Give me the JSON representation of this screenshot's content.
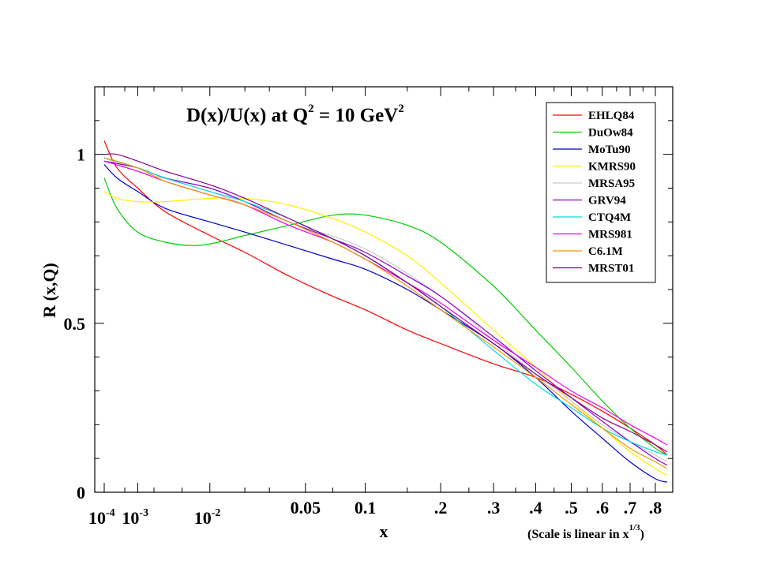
{
  "chart_data": {
    "type": "line",
    "title": "D(x)/U(x) at Q",
    "title_sup1": "2",
    "title_mid": " = 10 GeV",
    "title_sup2": "2",
    "xlabel": "x",
    "ylabel": "R (x,Q)",
    "scale_note": "(Scale is linear in x",
    "scale_note_sup": "1/3",
    "scale_note_end": ")",
    "x_scale": "linear in x^(1/3)",
    "xlim": [
      0.0001,
      0.85
    ],
    "ylim": [
      0,
      1.2
    ],
    "grid": false,
    "legend_position": "top-right",
    "y_ticks": [
      {
        "value": 0,
        "label": "0"
      },
      {
        "value": 0.5,
        "label": "0.5"
      },
      {
        "value": 1,
        "label": "1"
      }
    ],
    "x_ticks": [
      {
        "value": 0.0001,
        "base": "10",
        "exp": "-4"
      },
      {
        "value": 0.001,
        "base": "10",
        "exp": "-3"
      },
      {
        "value": 0.01,
        "base": "10",
        "exp": "-2"
      },
      {
        "value": 0.05,
        "base": "0.05",
        "exp": ""
      },
      {
        "value": 0.1,
        "base": "0.1",
        "exp": ""
      },
      {
        "value": 0.2,
        "base": ".2",
        "exp": ""
      },
      {
        "value": 0.3,
        "base": ".3",
        "exp": ""
      },
      {
        "value": 0.4,
        "base": ".4",
        "exp": ""
      },
      {
        "value": 0.5,
        "base": ".5",
        "exp": ""
      },
      {
        "value": 0.6,
        "base": ".6",
        "exp": ""
      },
      {
        "value": 0.7,
        "base": ".7",
        "exp": ""
      },
      {
        "value": 0.8,
        "base": ".8",
        "exp": ""
      }
    ],
    "series": [
      {
        "name": "EHLQ84",
        "color": "#ff0000",
        "points": [
          [
            0.0001,
            1.04
          ],
          [
            0.0003,
            0.96
          ],
          [
            0.001,
            0.9
          ],
          [
            0.003,
            0.83
          ],
          [
            0.01,
            0.76
          ],
          [
            0.02,
            0.71
          ],
          [
            0.04,
            0.64
          ],
          [
            0.07,
            0.58
          ],
          [
            0.1,
            0.54
          ],
          [
            0.15,
            0.48
          ],
          [
            0.2,
            0.44
          ],
          [
            0.3,
            0.38
          ],
          [
            0.4,
            0.34
          ],
          [
            0.5,
            0.29
          ],
          [
            0.6,
            0.24
          ],
          [
            0.7,
            0.19
          ],
          [
            0.8,
            0.14
          ],
          [
            0.85,
            0.11
          ]
        ]
      },
      {
        "name": "DuOw84",
        "color": "#00cc00",
        "points": [
          [
            0.0001,
            0.93
          ],
          [
            0.0003,
            0.84
          ],
          [
            0.001,
            0.77
          ],
          [
            0.003,
            0.74
          ],
          [
            0.007,
            0.73
          ],
          [
            0.012,
            0.74
          ],
          [
            0.02,
            0.76
          ],
          [
            0.04,
            0.79
          ],
          [
            0.07,
            0.82
          ],
          [
            0.1,
            0.82
          ],
          [
            0.15,
            0.79
          ],
          [
            0.2,
            0.74
          ],
          [
            0.3,
            0.61
          ],
          [
            0.4,
            0.48
          ],
          [
            0.5,
            0.37
          ],
          [
            0.6,
            0.27
          ],
          [
            0.7,
            0.19
          ],
          [
            0.8,
            0.13
          ],
          [
            0.85,
            0.11
          ]
        ]
      },
      {
        "name": "MoTu90",
        "color": "#0000cc",
        "points": [
          [
            0.0001,
            0.97
          ],
          [
            0.0003,
            0.93
          ],
          [
            0.001,
            0.89
          ],
          [
            0.003,
            0.84
          ],
          [
            0.01,
            0.8
          ],
          [
            0.02,
            0.77
          ],
          [
            0.04,
            0.73
          ],
          [
            0.07,
            0.69
          ],
          [
            0.1,
            0.66
          ],
          [
            0.15,
            0.6
          ],
          [
            0.2,
            0.54
          ],
          [
            0.3,
            0.44
          ],
          [
            0.4,
            0.34
          ],
          [
            0.5,
            0.24
          ],
          [
            0.6,
            0.16
          ],
          [
            0.7,
            0.09
          ],
          [
            0.8,
            0.04
          ],
          [
            0.85,
            0.03
          ]
        ]
      },
      {
        "name": "KMRS90",
        "color": "#ffee00",
        "points": [
          [
            0.0001,
            0.89
          ],
          [
            0.0003,
            0.87
          ],
          [
            0.001,
            0.86
          ],
          [
            0.003,
            0.86
          ],
          [
            0.01,
            0.87
          ],
          [
            0.02,
            0.87
          ],
          [
            0.04,
            0.85
          ],
          [
            0.07,
            0.81
          ],
          [
            0.1,
            0.77
          ],
          [
            0.15,
            0.7
          ],
          [
            0.2,
            0.62
          ],
          [
            0.3,
            0.48
          ],
          [
            0.4,
            0.37
          ],
          [
            0.5,
            0.27
          ],
          [
            0.6,
            0.19
          ],
          [
            0.7,
            0.12
          ],
          [
            0.8,
            0.07
          ],
          [
            0.85,
            0.05
          ]
        ]
      },
      {
        "name": "MRSA95",
        "color": "#cccccc",
        "points": [
          [
            0.0001,
            0.99
          ],
          [
            0.001,
            0.95
          ],
          [
            0.01,
            0.89
          ],
          [
            0.04,
            0.8
          ],
          [
            0.1,
            0.72
          ],
          [
            0.2,
            0.58
          ],
          [
            0.3,
            0.45
          ],
          [
            0.4,
            0.35
          ],
          [
            0.5,
            0.27
          ],
          [
            0.6,
            0.2
          ],
          [
            0.7,
            0.15
          ],
          [
            0.8,
            0.11
          ],
          [
            0.85,
            0.09
          ]
        ]
      },
      {
        "name": "GRV94",
        "color": "#8800cc",
        "points": [
          [
            0.0001,
            0.98
          ],
          [
            0.001,
            0.96
          ],
          [
            0.003,
            0.93
          ],
          [
            0.01,
            0.9
          ],
          [
            0.02,
            0.86
          ],
          [
            0.04,
            0.8
          ],
          [
            0.07,
            0.75
          ],
          [
            0.1,
            0.71
          ],
          [
            0.15,
            0.64
          ],
          [
            0.2,
            0.58
          ],
          [
            0.3,
            0.46
          ],
          [
            0.4,
            0.36
          ],
          [
            0.5,
            0.28
          ],
          [
            0.6,
            0.21
          ],
          [
            0.7,
            0.15
          ],
          [
            0.8,
            0.1
          ],
          [
            0.85,
            0.08
          ]
        ]
      },
      {
        "name": "CTQ4M",
        "color": "#00dddd",
        "points": [
          [
            0.0001,
            0.99
          ],
          [
            0.001,
            0.96
          ],
          [
            0.003,
            0.93
          ],
          [
            0.01,
            0.89
          ],
          [
            0.02,
            0.86
          ],
          [
            0.04,
            0.81
          ],
          [
            0.07,
            0.75
          ],
          [
            0.1,
            0.7
          ],
          [
            0.15,
            0.62
          ],
          [
            0.2,
            0.55
          ],
          [
            0.3,
            0.42
          ],
          [
            0.4,
            0.32
          ],
          [
            0.5,
            0.25
          ],
          [
            0.6,
            0.19
          ],
          [
            0.7,
            0.15
          ],
          [
            0.8,
            0.12
          ],
          [
            0.85,
            0.11
          ]
        ]
      },
      {
        "name": "MRS981",
        "color": "#ee00ee",
        "points": [
          [
            0.0001,
            0.98
          ],
          [
            0.001,
            0.95
          ],
          [
            0.003,
            0.92
          ],
          [
            0.01,
            0.88
          ],
          [
            0.02,
            0.85
          ],
          [
            0.04,
            0.79
          ],
          [
            0.07,
            0.74
          ],
          [
            0.1,
            0.69
          ],
          [
            0.15,
            0.62
          ],
          [
            0.2,
            0.56
          ],
          [
            0.3,
            0.45
          ],
          [
            0.4,
            0.37
          ],
          [
            0.5,
            0.3
          ],
          [
            0.6,
            0.25
          ],
          [
            0.7,
            0.2
          ],
          [
            0.8,
            0.16
          ],
          [
            0.85,
            0.14
          ]
        ]
      },
      {
        "name": "C6.1M",
        "color": "#ee9900",
        "points": [
          [
            0.0001,
            0.99
          ],
          [
            0.001,
            0.96
          ],
          [
            0.003,
            0.92
          ],
          [
            0.01,
            0.88
          ],
          [
            0.02,
            0.85
          ],
          [
            0.04,
            0.8
          ],
          [
            0.07,
            0.74
          ],
          [
            0.1,
            0.69
          ],
          [
            0.15,
            0.61
          ],
          [
            0.2,
            0.54
          ],
          [
            0.3,
            0.43
          ],
          [
            0.4,
            0.34
          ],
          [
            0.5,
            0.26
          ],
          [
            0.6,
            0.19
          ],
          [
            0.7,
            0.13
          ],
          [
            0.8,
            0.09
          ],
          [
            0.85,
            0.07
          ]
        ]
      },
      {
        "name": "MRST01",
        "color": "#880088",
        "points": [
          [
            0.0001,
            1.0
          ],
          [
            0.0003,
            1.0
          ],
          [
            0.001,
            0.98
          ],
          [
            0.003,
            0.95
          ],
          [
            0.01,
            0.91
          ],
          [
            0.02,
            0.87
          ],
          [
            0.04,
            0.81
          ],
          [
            0.07,
            0.75
          ],
          [
            0.1,
            0.7
          ],
          [
            0.15,
            0.62
          ],
          [
            0.2,
            0.55
          ],
          [
            0.3,
            0.44
          ],
          [
            0.4,
            0.35
          ],
          [
            0.5,
            0.28
          ],
          [
            0.6,
            0.22
          ],
          [
            0.7,
            0.18
          ],
          [
            0.8,
            0.14
          ],
          [
            0.85,
            0.12
          ]
        ]
      }
    ]
  }
}
